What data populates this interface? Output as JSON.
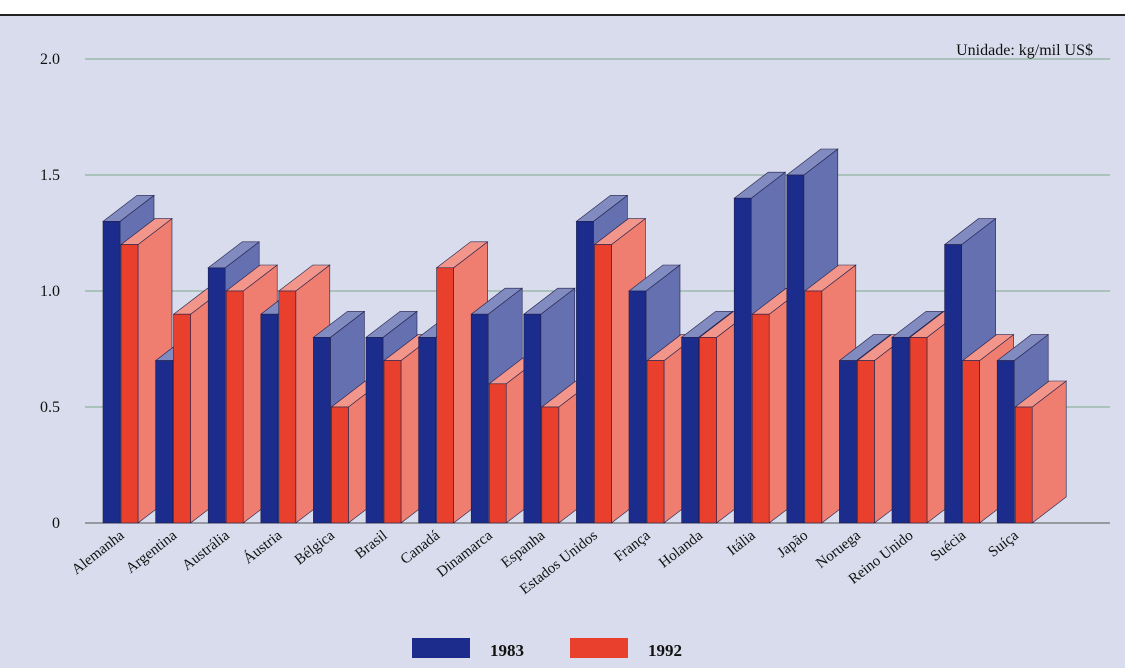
{
  "chart_data": {
    "type": "bar",
    "title": "",
    "unit_label": "Unidade: kg/mil US$",
    "ylim": [
      0,
      2.0
    ],
    "yticks": [
      "0",
      "0.5",
      "1.0",
      "1.5",
      "2.0"
    ],
    "grid": true,
    "categories": [
      "Alemanha",
      "Argentina",
      "Austrália",
      "Áustria",
      "Bélgica",
      "Brasil",
      "Canadá",
      "Dinamarca",
      "Espanha",
      "Estados Unidos",
      "França",
      "Holanda",
      "Itália",
      "Japão",
      "Noruega",
      "Reino Unido",
      "Suécia",
      "Suíça"
    ],
    "series": [
      {
        "name": "1983",
        "color": "#1c2c8c",
        "values": [
          1.3,
          0.7,
          1.1,
          0.9,
          0.8,
          0.8,
          0.8,
          0.9,
          0.9,
          1.3,
          1.0,
          0.8,
          1.4,
          1.5,
          0.7,
          0.8,
          1.2,
          0.7
        ]
      },
      {
        "name": "1992",
        "color": "#e8402c",
        "values": [
          1.2,
          0.9,
          1.0,
          1.0,
          0.5,
          0.7,
          1.1,
          0.6,
          0.5,
          1.2,
          0.7,
          0.8,
          0.9,
          1.0,
          0.7,
          0.8,
          0.7,
          0.5
        ]
      }
    ],
    "legend_placement": "bottom-center"
  },
  "legend": {
    "label_1983": "1983",
    "label_1992": "1992"
  }
}
